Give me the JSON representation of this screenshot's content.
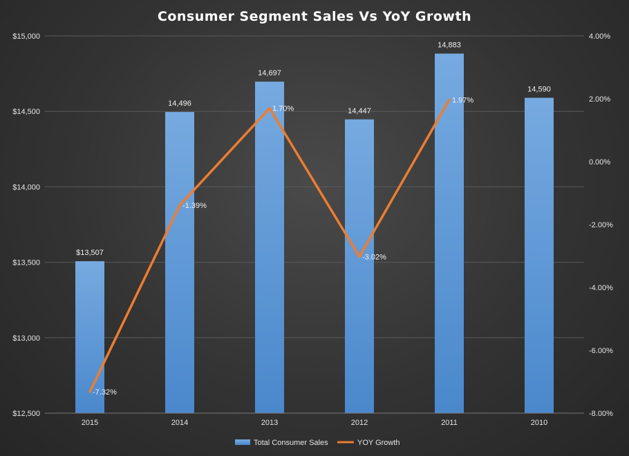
{
  "chart_data": {
    "type": "bar",
    "title": "Consumer Segment Sales Vs YoY Growth",
    "categories": [
      "2015",
      "2014",
      "2013",
      "2012",
      "2011",
      "2010"
    ],
    "series": [
      {
        "name": "Total Consumer Sales",
        "type": "bar",
        "axis": "left",
        "values": [
          13507,
          14496,
          14697,
          14447,
          14883,
          14590
        ],
        "labels": [
          "$13,507",
          "14,496",
          "14,697",
          "14,447",
          "14,883",
          "14,590"
        ],
        "color": "#5b9bd5"
      },
      {
        "name": "YOY Growth",
        "type": "line",
        "axis": "right",
        "values": [
          -7.32,
          -1.39,
          1.7,
          -3.02,
          1.97,
          null
        ],
        "labels": [
          "-7.32%",
          "-1.39%",
          "1.70%",
          "-3.02%",
          "1.97%",
          ""
        ],
        "color": "#ed7d31"
      }
    ],
    "y_left": {
      "min": 12500,
      "max": 15000,
      "ticks": [
        12500,
        13000,
        13500,
        14000,
        14500,
        15000
      ],
      "tick_labels": [
        "$12,500",
        "$13,000",
        "$13,500",
        "$14,000",
        "$14,500",
        "$15,000"
      ]
    },
    "y_right": {
      "min": -8,
      "max": 4,
      "ticks": [
        -8,
        -6,
        -4,
        -2,
        0,
        2,
        4
      ],
      "tick_labels": [
        "-8.00%",
        "-6.00%",
        "-4.00%",
        "-2.00%",
        "0.00%",
        "2.00%",
        "4.00%"
      ]
    },
    "grid": true,
    "legend": {
      "position": "bottom"
    }
  }
}
